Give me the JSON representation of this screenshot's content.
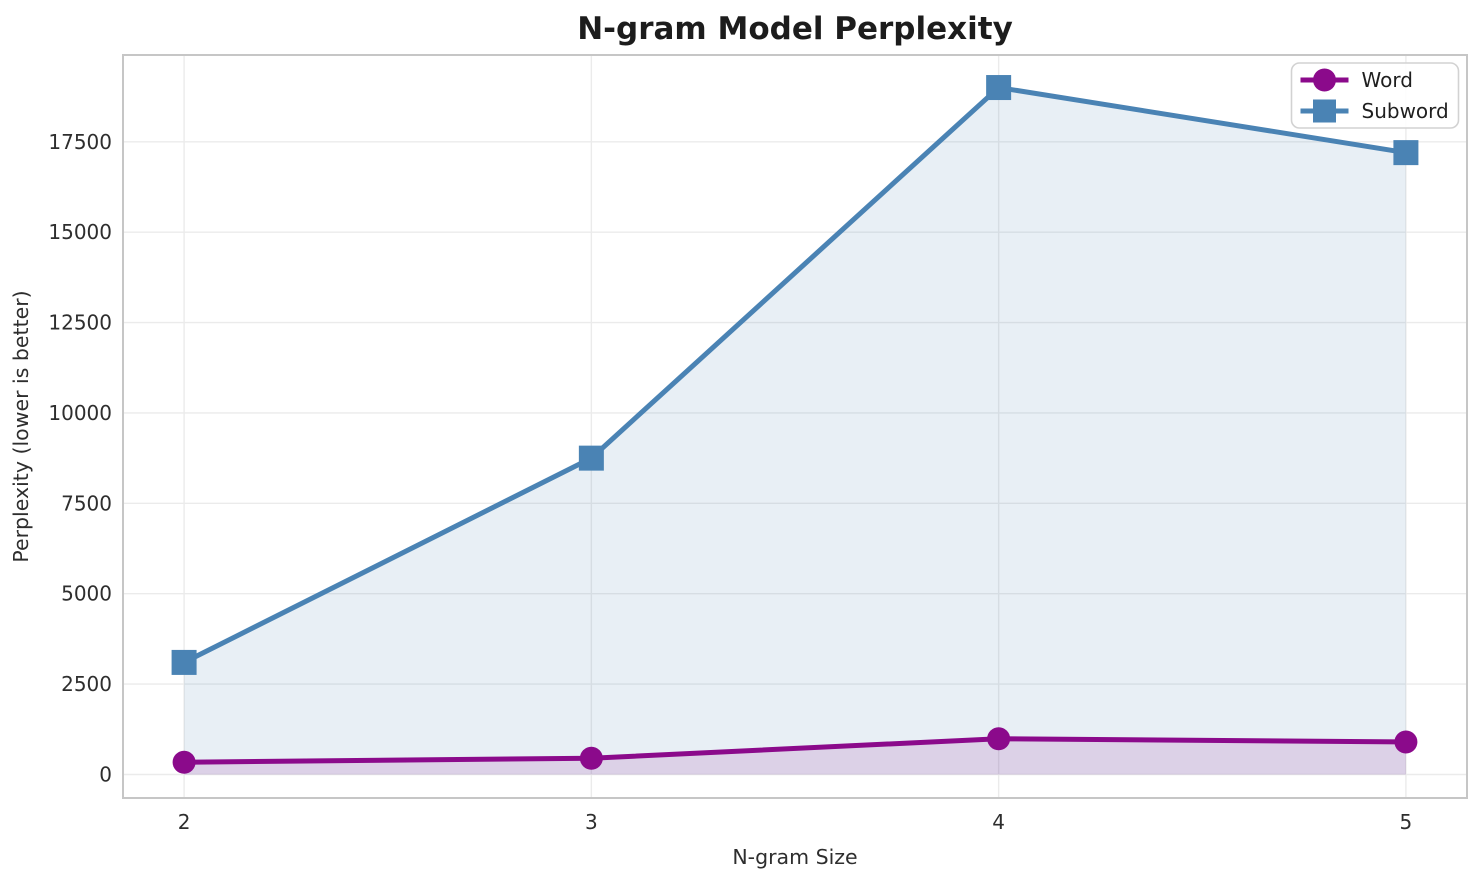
{
  "figure": {
    "background": "#ffffff"
  },
  "chart_data": {
    "type": "line",
    "title": "N-gram Model Perplexity",
    "xlabel": "N-gram Size",
    "ylabel": "Perplexity (lower is better)",
    "x": [
      2,
      3,
      4,
      5
    ],
    "series": [
      {
        "name": "Word",
        "values": [
          340,
          450,
          990,
          900
        ],
        "color": "#8b0a8b",
        "marker": "circle"
      },
      {
        "name": "Subword",
        "values": [
          3100,
          8750,
          19000,
          17200
        ],
        "color": "#4a83b4",
        "marker": "square"
      }
    ],
    "xticks": [
      "2",
      "3",
      "4",
      "5"
    ],
    "xtick_values": [
      2,
      3,
      4,
      5
    ],
    "yticks": [
      "0",
      "2500",
      "5000",
      "7500",
      "10000",
      "12500",
      "15000",
      "17500"
    ],
    "ytick_values": [
      0,
      2500,
      5000,
      7500,
      10000,
      12500,
      15000,
      17500
    ],
    "xlim": [
      1.85,
      5.15
    ],
    "ylim": [
      -650,
      19900
    ],
    "grid": true,
    "area_fill": true,
    "fill_baseline": 0,
    "fill_opacity": 0.13,
    "legend_position": "upper right",
    "legend_labels": [
      "Word",
      "Subword"
    ]
  },
  "colors": {
    "grid": "#ebebeb",
    "spine": "#c6c6c6",
    "tick_text": "#2e2e2e",
    "title_text": "#1c1c1c",
    "legend_border": "#d2d2d2",
    "legend_background": "#ffffff"
  }
}
